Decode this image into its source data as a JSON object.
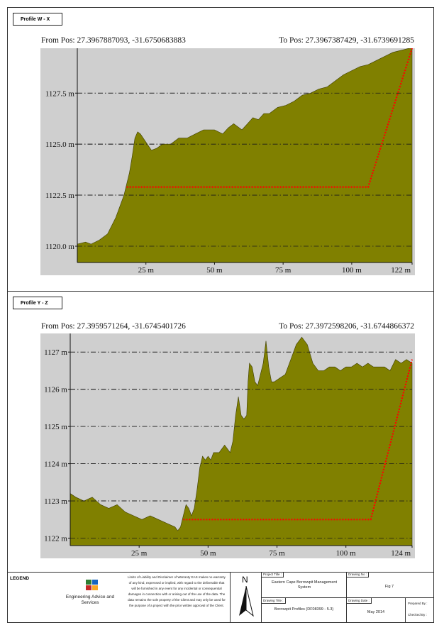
{
  "profiles": [
    {
      "title": "Profile W - X",
      "from_pos": "From Pos: 27.3967887093, -31.6750683883",
      "to_pos": "To Pos: 27.3967387429, -31.6739691285"
    },
    {
      "title": "Profile Y - Z",
      "from_pos": "From Pos: 27.3959571264, -31.6745401726",
      "to_pos": "To Pos: 27.3972598206, -31.6744866372"
    }
  ],
  "chart_data": [
    {
      "type": "area",
      "title": "Profile W - X",
      "xlim": [
        0,
        122
      ],
      "ylim": [
        1119.2,
        1129.7
      ],
      "x_ticks": [
        25,
        50,
        75,
        100,
        122
      ],
      "x_tick_labels": [
        "25 m",
        "50 m",
        "75 m",
        "100 m",
        "122 m"
      ],
      "y_ticks": [
        1120.0,
        1122.5,
        1125.0,
        1127.5
      ],
      "y_tick_labels": [
        "1120.0 m",
        "1122.5 m",
        "1125.0 m",
        "1127.5 m"
      ],
      "grid": "horizontal dash-dot",
      "colors": {
        "fill": "#808000",
        "background": "#cfcfcf",
        "line": "#ff0000"
      },
      "series": [
        {
          "x": [
            0,
            3,
            5,
            8,
            11,
            14,
            17,
            19,
            20,
            21,
            22,
            23,
            25,
            27,
            29,
            31,
            34,
            37,
            40,
            43,
            46,
            50,
            53,
            55,
            57,
            60,
            62,
            64,
            66,
            68,
            70,
            73,
            76,
            79,
            82,
            85,
            88,
            91,
            94,
            97,
            100,
            103,
            106,
            109,
            112,
            115,
            118,
            121,
            122
          ],
          "values": [
            1120.1,
            1120.2,
            1120.1,
            1120.3,
            1120.6,
            1121.4,
            1122.5,
            1123.6,
            1124.4,
            1125.3,
            1125.6,
            1125.5,
            1125.1,
            1124.7,
            1124.8,
            1125.0,
            1125.0,
            1125.3,
            1125.3,
            1125.5,
            1125.7,
            1125.7,
            1125.5,
            1125.8,
            1126.0,
            1125.7,
            1126.0,
            1126.3,
            1126.2,
            1126.5,
            1126.5,
            1126.8,
            1126.9,
            1127.1,
            1127.4,
            1127.5,
            1127.7,
            1127.8,
            1128.1,
            1128.4,
            1128.6,
            1128.8,
            1128.9,
            1129.1,
            1129.3,
            1129.5,
            1129.6,
            1129.7,
            1129.7
          ]
        },
        {
          "type": "line",
          "x": [
            18,
            106,
            122
          ],
          "values": [
            1122.9,
            1122.9,
            1129.7
          ]
        }
      ]
    },
    {
      "type": "area",
      "title": "Profile Y - Z",
      "xlim": [
        0,
        124
      ],
      "ylim": [
        1121.8,
        1127.5
      ],
      "x_ticks": [
        25,
        50,
        75,
        100,
        124
      ],
      "x_tick_labels": [
        "25 m",
        "50 m",
        "75 m",
        "100 m",
        "124 m"
      ],
      "y_ticks": [
        1122,
        1123,
        1124,
        1125,
        1126,
        1127
      ],
      "y_tick_labels": [
        "1122 m",
        "1123 m",
        "1124 m",
        "1125 m",
        "1126 m",
        "1127 m"
      ],
      "grid": "horizontal dash-dot",
      "colors": {
        "fill": "#808000",
        "background": "#cfcfcf",
        "line": "#ff0000"
      },
      "series": [
        {
          "x": [
            0,
            2,
            5,
            8,
            11,
            14,
            17,
            20,
            23,
            26,
            29,
            32,
            35,
            38,
            39,
            40,
            41,
            42,
            43,
            44,
            45,
            46,
            47,
            48,
            49,
            50,
            51,
            52,
            54,
            56,
            58,
            59,
            60,
            61,
            62,
            63,
            64,
            64.5,
            65,
            66,
            67,
            68,
            69,
            70,
            71,
            72,
            73,
            74,
            76,
            78,
            80,
            82,
            84,
            86,
            88,
            90,
            92,
            94,
            96,
            98,
            100,
            102,
            104,
            106,
            108,
            110,
            112,
            114,
            116,
            118,
            120,
            122,
            124
          ],
          "values": [
            1123.2,
            1123.1,
            1123.0,
            1123.1,
            1122.9,
            1122.8,
            1122.9,
            1122.7,
            1122.6,
            1122.5,
            1122.6,
            1122.5,
            1122.4,
            1122.3,
            1122.2,
            1122.3,
            1122.6,
            1122.9,
            1122.8,
            1122.6,
            1122.8,
            1123.3,
            1123.9,
            1124.2,
            1124.1,
            1124.2,
            1124.1,
            1124.3,
            1124.3,
            1124.5,
            1124.3,
            1124.6,
            1125.3,
            1125.8,
            1125.3,
            1125.2,
            1125.3,
            1126.2,
            1126.7,
            1126.6,
            1126.2,
            1126.1,
            1126.4,
            1126.7,
            1127.3,
            1126.6,
            1126.2,
            1126.2,
            1126.3,
            1126.4,
            1126.8,
            1127.2,
            1127.4,
            1127.2,
            1126.7,
            1126.5,
            1126.5,
            1126.6,
            1126.6,
            1126.5,
            1126.6,
            1126.6,
            1126.7,
            1126.6,
            1126.7,
            1126.6,
            1126.6,
            1126.6,
            1126.5,
            1126.8,
            1126.7,
            1126.8,
            1126.7
          ]
        },
        {
          "type": "line",
          "x": [
            41,
            109,
            124
          ],
          "values": [
            1122.5,
            1122.5,
            1126.8
          ]
        }
      ]
    }
  ],
  "legend": {
    "label": "LEGEND",
    "company": "Engineering Advice and Services",
    "disclaimer": "Limits of Liability and Disclaimer of Warranty EAS makes no warranty of any kind, expressed or implied, with regard to the deliverable that will be furnished in any event for any incidental or consequential damages in connection with or arising out of the use of the data. The data remains the sole property of the Client and may only be used for the purpose of a project with the prior written approval of the Client.",
    "north": "N",
    "project_title_label": "Project Title :",
    "project_title": "Eastern Cape Borrowpit Management System",
    "drawing_title_label": "Drawing Title :",
    "drawing_title": "Borrowpit Profiles (DF08399 - 5.3)",
    "drawing_no_label": "Drawing No :",
    "drawing_no": "Fig 7",
    "drawing_date_label": "Drawing Date :",
    "drawing_date": "May 2014",
    "prepared_by": "Prepared By : ",
    "checked_by": "Checked By : "
  }
}
